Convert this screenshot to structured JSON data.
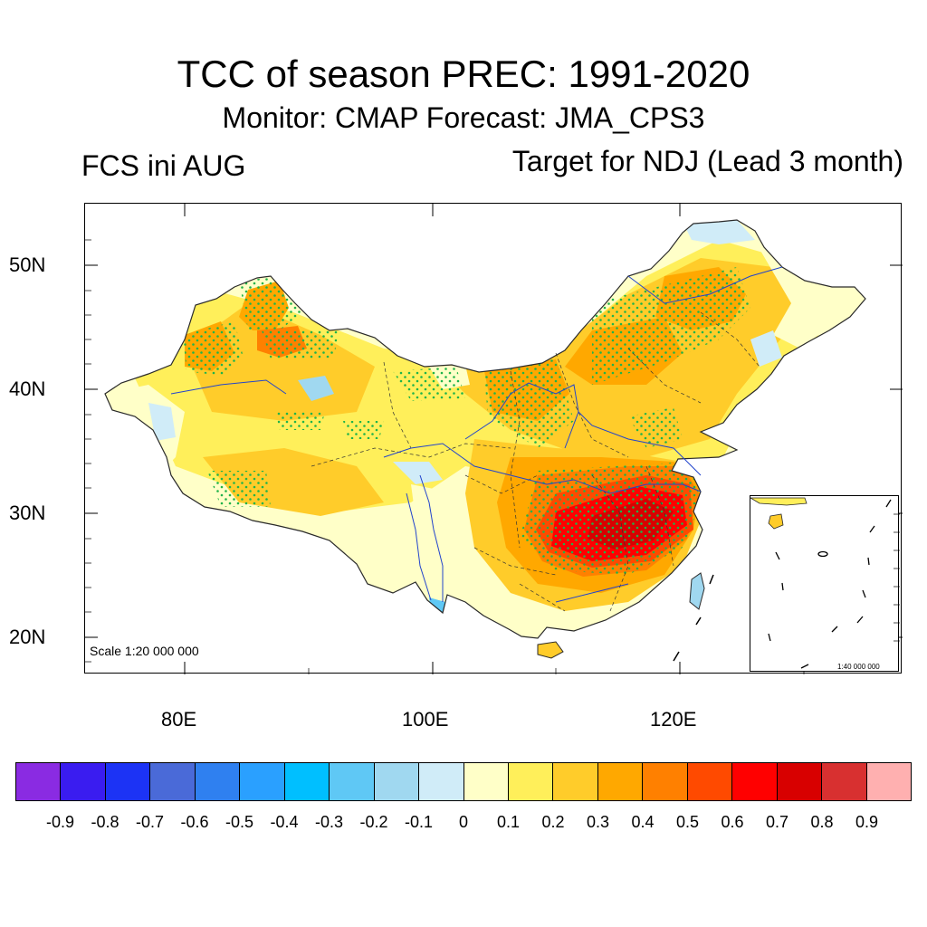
{
  "header": {
    "title": "TCC of season PREC: 1991-2020",
    "subtitle": "Monitor: CMAP   Forecast: JMA_CPS3",
    "left_label": "FCS ini AUG",
    "right_label": "Target for NDJ (Lead 3 month)"
  },
  "map": {
    "lat_labels": [
      "50N",
      "40N",
      "30N",
      "20N"
    ],
    "lon_labels": [
      "80E",
      "100E",
      "120E"
    ],
    "scale_main": "Scale 1:20 000 000",
    "scale_inset": "1:40 000 000",
    "dot_color": "#1fb34a",
    "border_color": "#2a2a2a",
    "river_color": "#2244cc"
  },
  "colorbar": {
    "colors": [
      "#8a2be2",
      "#3a1cf0",
      "#1c33f5",
      "#4a6ad8",
      "#2f80f0",
      "#2aa0ff",
      "#00bfff",
      "#5fc8f5",
      "#a0d8f0",
      "#d0ecf8",
      "#ffffc8",
      "#ffef5a",
      "#ffcc2a",
      "#ffa800",
      "#ff8000",
      "#ff4a00",
      "#ff0000",
      "#d80000",
      "#d83030",
      "#ffb0b0"
    ],
    "labels": [
      "-0.9",
      "-0.8",
      "-0.7",
      "-0.6",
      "-0.5",
      "-0.4",
      "-0.3",
      "-0.2",
      "-0.1",
      "0",
      "0.1",
      "0.2",
      "0.3",
      "0.4",
      "0.5",
      "0.6",
      "0.7",
      "0.8",
      "0.9"
    ]
  }
}
